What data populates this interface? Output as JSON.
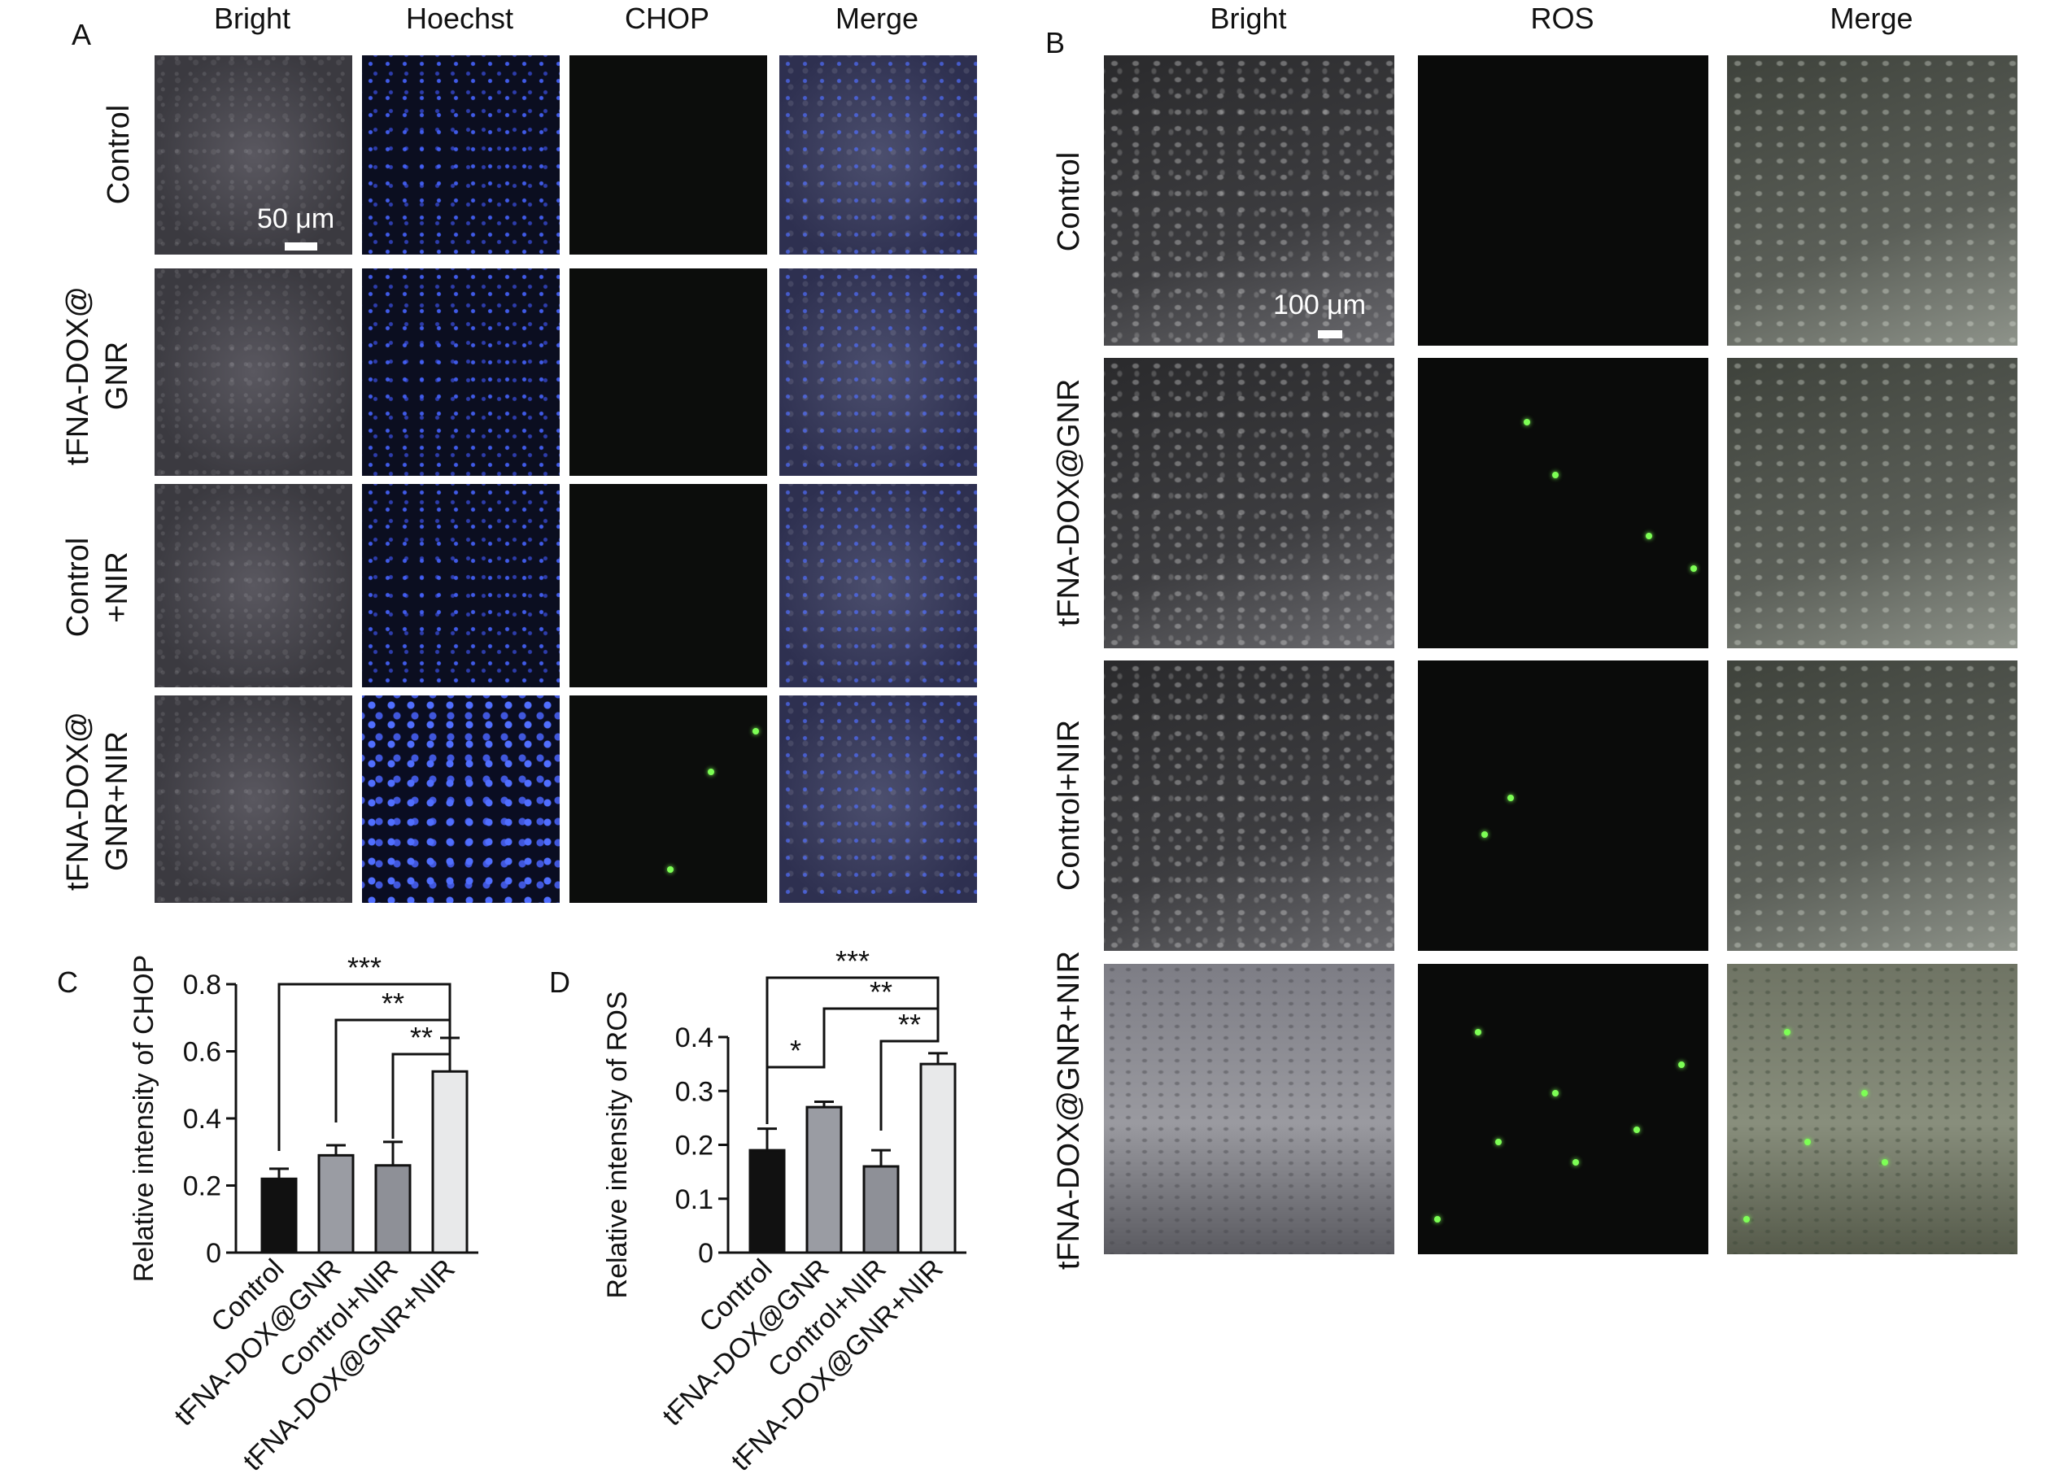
{
  "panel_a": {
    "letter": "A",
    "columns": [
      "Bright",
      "Hoechst",
      "CHOP",
      "Merge"
    ],
    "rows": [
      [
        "Control"
      ],
      [
        "tFNA-DOX@",
        "GNR"
      ],
      [
        "Control",
        "+NIR"
      ],
      [
        "tFNA-DOX@",
        "GNR+NIR"
      ]
    ],
    "scale_bar": "50 μm"
  },
  "panel_b": {
    "letter": "B",
    "columns": [
      "Bright",
      "ROS",
      "Merge"
    ],
    "rows": [
      "Control",
      "tFNA-DOX@GNR",
      "Control+NIR",
      "tFNA-DOX@GNR+NIR"
    ],
    "scale_bar": "100 μm"
  },
  "chart_data": [
    {
      "panel": "C",
      "type": "bar",
      "ylabel": "Relative intensity of CHOP",
      "categories": [
        "Control",
        "tFNA-DOX@GNR",
        "Control+NIR",
        "tFNA-DOX@GNR+NIR"
      ],
      "values": [
        0.22,
        0.29,
        0.26,
        0.54
      ],
      "errors": [
        0.03,
        0.03,
        0.07,
        0.1
      ],
      "bar_colors": [
        "#111111",
        "#9a9ca3",
        "#8e9097",
        "#e8e9ea"
      ],
      "ylim": [
        0,
        0.8
      ],
      "yticks": [
        "0",
        "0.2",
        "0.4",
        "0.6",
        "0.8"
      ],
      "significance": [
        {
          "from": 0,
          "to": 3,
          "label": "***"
        },
        {
          "from": 1,
          "to": 3,
          "label": "**"
        },
        {
          "from": 2,
          "to": 3,
          "label": "**"
        }
      ]
    },
    {
      "panel": "D",
      "type": "bar",
      "ylabel": "Relative intensity of ROS",
      "categories": [
        "Control",
        "tFNA-DOX@GNR",
        "Control+NIR",
        "tFNA-DOX@GNR+NIR"
      ],
      "values": [
        0.19,
        0.27,
        0.16,
        0.35
      ],
      "errors": [
        0.04,
        0.01,
        0.03,
        0.02
      ],
      "bar_colors": [
        "#111111",
        "#9a9ca3",
        "#8e9097",
        "#e8e9ea"
      ],
      "ylim": [
        0,
        0.4
      ],
      "yticks": [
        "0",
        "0.1",
        "0.2",
        "0.3",
        "0.4"
      ],
      "significance": [
        {
          "from": 0,
          "to": 3,
          "label": "***"
        },
        {
          "from": 1,
          "to": 3,
          "label": "**"
        },
        {
          "from": 2,
          "to": 3,
          "label": "**"
        },
        {
          "from": 0,
          "to": 1,
          "label": "*"
        }
      ]
    }
  ]
}
